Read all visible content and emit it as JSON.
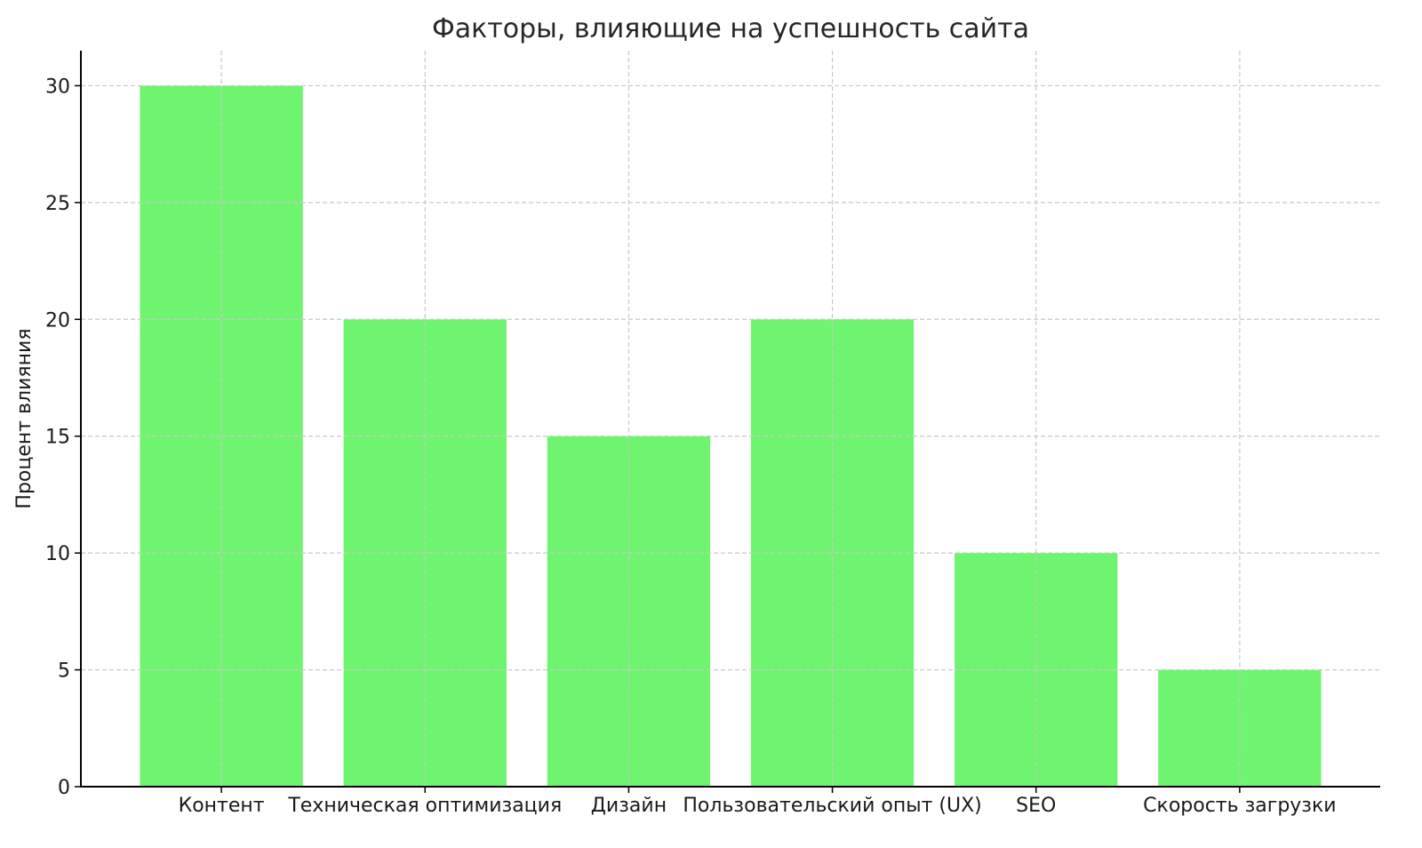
{
  "chart_data": {
    "type": "bar",
    "title": "Факторы, влияющие на успешность сайта",
    "xlabel": "",
    "ylabel": "Процент влияния",
    "categories": [
      "Контент",
      "Техническая оптимизация",
      "Дизайн",
      "Пользовательский опыт (UX)",
      "SEO",
      "Скорость загрузки"
    ],
    "values": [
      30,
      20,
      15,
      20,
      10,
      5
    ],
    "ylim": [
      0,
      31.5
    ],
    "yticks": [
      0,
      5,
      10,
      15,
      20,
      25,
      30
    ],
    "grid": true,
    "bar_color": "#6ff46f",
    "legend": "none"
  }
}
